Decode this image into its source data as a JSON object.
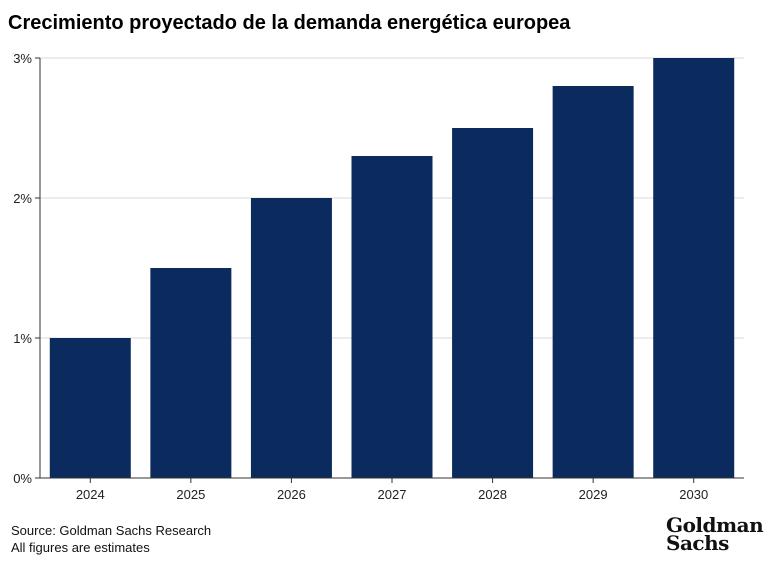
{
  "chart_data": {
    "type": "bar",
    "title": "Crecimiento proyectado de la demanda energética europea",
    "categories": [
      "2024",
      "2025",
      "2026",
      "2027",
      "2028",
      "2029",
      "2030"
    ],
    "values": [
      1.0,
      1.5,
      2.0,
      2.3,
      2.5,
      2.8,
      3.0
    ],
    "y_ticks": [
      0,
      1,
      2,
      3
    ],
    "y_tick_labels": [
      "0%",
      "1%",
      "2%",
      "3%"
    ],
    "ylim": [
      0,
      3
    ],
    "xlabel": "",
    "ylabel": "",
    "grid": true,
    "bar_color": "#0b2a5e",
    "grid_color": "#d9d9d9"
  },
  "footer": {
    "source": "Source: Goldman Sachs Research",
    "note": "All figures are estimates"
  },
  "brand": {
    "line1": "Goldman",
    "line2": "Sachs"
  }
}
